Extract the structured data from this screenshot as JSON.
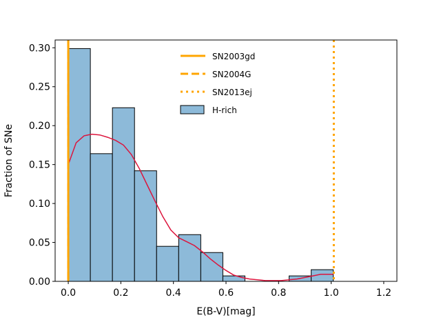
{
  "chart_data": {
    "type": "bar",
    "xlabel": "E(B-V)[mag]",
    "ylabel": "Fraction of SNe",
    "xlim": [
      -0.05,
      1.25
    ],
    "ylim": [
      0,
      0.31
    ],
    "xticks": [
      0.0,
      0.2,
      0.4,
      0.6,
      0.8,
      1.0,
      1.2
    ],
    "xtick_labels": [
      "0.0",
      "0.2",
      "0.4",
      "0.6",
      "0.8",
      "1.0",
      "1.2"
    ],
    "yticks": [
      0.0,
      0.05,
      0.1,
      0.15,
      0.2,
      0.25,
      0.3
    ],
    "ytick_labels": [
      "0.00",
      "0.05",
      "0.10",
      "0.15",
      "0.20",
      "0.25",
      "0.30"
    ],
    "histogram": {
      "name": "H-rich",
      "color": "#8dbad9",
      "edge_color": "#000000",
      "bin_edges": [
        0.0,
        0.084,
        0.168,
        0.252,
        0.336,
        0.42,
        0.504,
        0.588,
        0.672,
        0.756,
        0.84,
        0.924,
        1.008
      ],
      "values": [
        0.299,
        0.164,
        0.223,
        0.142,
        0.045,
        0.06,
        0.037,
        0.007,
        0.0,
        0.0,
        0.007,
        0.015
      ]
    },
    "kde": {
      "color": "#dc143c",
      "x": [
        0.0,
        0.03,
        0.06,
        0.09,
        0.12,
        0.15,
        0.18,
        0.21,
        0.24,
        0.27,
        0.3,
        0.33,
        0.36,
        0.39,
        0.42,
        0.45,
        0.48,
        0.51,
        0.54,
        0.57,
        0.6,
        0.63,
        0.66,
        0.69,
        0.72,
        0.75,
        0.78,
        0.81,
        0.84,
        0.87,
        0.9,
        0.93,
        0.96,
        0.99,
        1.008
      ],
      "y": [
        0.15,
        0.178,
        0.187,
        0.189,
        0.188,
        0.185,
        0.181,
        0.175,
        0.163,
        0.145,
        0.124,
        0.103,
        0.083,
        0.066,
        0.056,
        0.051,
        0.046,
        0.038,
        0.029,
        0.021,
        0.014,
        0.008,
        0.005,
        0.003,
        0.002,
        0.001,
        0.001,
        0.001,
        0.002,
        0.003,
        0.005,
        0.007,
        0.009,
        0.009,
        0.009
      ]
    },
    "vlines": [
      {
        "name": "SN2003gd",
        "x": 0.0,
        "style": "solid",
        "color": "#ffa500"
      },
      {
        "name": "SN2004G",
        "x": 0.0,
        "style": "dashed",
        "color": "#ffa500"
      },
      {
        "name": "SN2013ej",
        "x": 1.01,
        "style": "dotted",
        "color": "#ffa500"
      }
    ],
    "legend": {
      "position": "upper-center",
      "entries": [
        "SN2003gd",
        "SN2004G",
        "SN2013ej",
        "H-rich"
      ]
    }
  }
}
